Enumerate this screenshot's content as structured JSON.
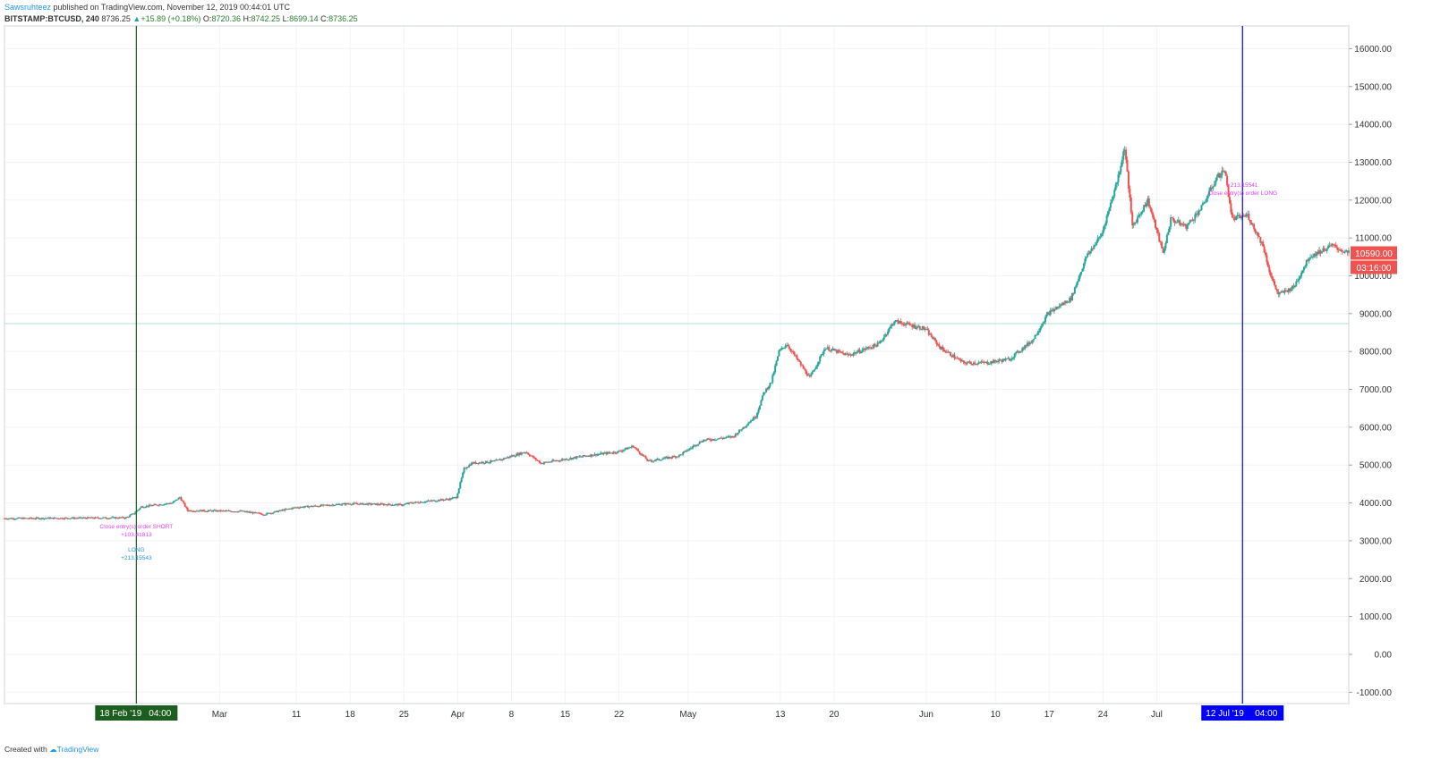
{
  "header": {
    "author": "Sawsruhteez",
    "published": "published on TradingView.com, November 12, 2019 00:44:01 UTC",
    "symbol": "BITSTAMP:BTCUSD, 240",
    "last": "8736.25",
    "change": "+15.89 (+0.18%)",
    "o_label": "O:",
    "o_value": "8720.36",
    "h_label": "H:",
    "h_value": "8742.25",
    "l_label": "L:",
    "l_value": "8699.14",
    "c_label": "C:",
    "c_value": "8736.25"
  },
  "footer": {
    "created_with": "Created with",
    "logo_text": "TradingView"
  },
  "colors": {
    "up": "#26a69a",
    "down": "#ef5350",
    "left_marker": "#1b5e20",
    "right_marker": "#0000ff",
    "annotation_magenta": "#e040fb",
    "annotation_blue": "#2196f3"
  },
  "chart_data": {
    "type": "candlestick",
    "y_axis": {
      "min": -1300,
      "max": 16600,
      "ticks": [
        16000,
        15000,
        14000,
        13000,
        12000,
        11000,
        10000,
        9000,
        8000,
        7000,
        6000,
        5000,
        4000,
        3000,
        2000,
        1000,
        0,
        -1000
      ],
      "tick_labels": [
        "16000.00",
        "15000.00",
        "14000.00",
        "13000.00",
        "12000.00",
        "11000.00",
        "10000.00",
        "9000.00",
        "8000.00",
        "7000.00",
        "6000.00",
        "5000.00",
        "4000.00",
        "3000.00",
        "2000.00",
        "1000.00",
        "0.00",
        "-1000.00"
      ]
    },
    "x_axis": {
      "start": "2019-02-01",
      "end": "2019-07-26",
      "ticks": [
        {
          "date": "2019-03-01",
          "label": "Mar"
        },
        {
          "date": "2019-03-11",
          "label": "11"
        },
        {
          "date": "2019-03-18",
          "label": "18"
        },
        {
          "date": "2019-03-25",
          "label": "25"
        },
        {
          "date": "2019-04-01",
          "label": "Apr"
        },
        {
          "date": "2019-04-08",
          "label": "8"
        },
        {
          "date": "2019-04-15",
          "label": "15"
        },
        {
          "date": "2019-04-22",
          "label": "22"
        },
        {
          "date": "2019-05-01",
          "label": "May"
        },
        {
          "date": "2019-05-13",
          "label": "13"
        },
        {
          "date": "2019-05-20",
          "label": "20"
        },
        {
          "date": "2019-06-01",
          "label": "Jun"
        },
        {
          "date": "2019-06-10",
          "label": "10"
        },
        {
          "date": "2019-06-17",
          "label": "17"
        },
        {
          "date": "2019-06-24",
          "label": "24"
        },
        {
          "date": "2019-07-01",
          "label": "Jul"
        }
      ]
    },
    "price_series": [
      [
        "2019-02-01",
        3590
      ],
      [
        "2019-02-10",
        3600
      ],
      [
        "2019-02-17",
        3610
      ],
      [
        "2019-02-18",
        3720
      ],
      [
        "2019-02-19",
        3900
      ],
      [
        "2019-02-23",
        4000
      ],
      [
        "2019-02-24",
        4150
      ],
      [
        "2019-02-25",
        3800
      ],
      [
        "2019-03-04",
        3780
      ],
      [
        "2019-03-07",
        3700
      ],
      [
        "2019-03-11",
        3880
      ],
      [
        "2019-03-18",
        3980
      ],
      [
        "2019-03-25",
        3950
      ],
      [
        "2019-03-26",
        4000
      ],
      [
        "2019-03-31",
        4100
      ],
      [
        "2019-04-01",
        4150
      ],
      [
        "2019-04-02",
        4900
      ],
      [
        "2019-04-03",
        5050
      ],
      [
        "2019-04-06",
        5100
      ],
      [
        "2019-04-10",
        5350
      ],
      [
        "2019-04-12",
        5050
      ],
      [
        "2019-04-18",
        5250
      ],
      [
        "2019-04-22",
        5350
      ],
      [
        "2019-04-24",
        5500
      ],
      [
        "2019-04-26",
        5100
      ],
      [
        "2019-04-30",
        5250
      ],
      [
        "2019-05-03",
        5650
      ],
      [
        "2019-05-07",
        5750
      ],
      [
        "2019-05-10",
        6300
      ],
      [
        "2019-05-11",
        6900
      ],
      [
        "2019-05-12",
        7200
      ],
      [
        "2019-05-13",
        8000
      ],
      [
        "2019-05-14",
        8200
      ],
      [
        "2019-05-17",
        7300
      ],
      [
        "2019-05-19",
        8100
      ],
      [
        "2019-05-22",
        7900
      ],
      [
        "2019-05-26",
        8200
      ],
      [
        "2019-05-28",
        8800
      ],
      [
        "2019-05-30",
        8700
      ],
      [
        "2019-06-01",
        8600
      ],
      [
        "2019-06-03",
        8100
      ],
      [
        "2019-06-06",
        7700
      ],
      [
        "2019-06-09",
        7700
      ],
      [
        "2019-06-12",
        7800
      ],
      [
        "2019-06-15",
        8300
      ],
      [
        "2019-06-17",
        9000
      ],
      [
        "2019-06-20",
        9400
      ],
      [
        "2019-06-22",
        10500
      ],
      [
        "2019-06-24",
        11100
      ],
      [
        "2019-06-26",
        12500
      ],
      [
        "2019-06-27",
        13400
      ],
      [
        "2019-06-28",
        11300
      ],
      [
        "2019-06-30",
        12000
      ],
      [
        "2019-07-02",
        10600
      ],
      [
        "2019-07-03",
        11500
      ],
      [
        "2019-07-05",
        11300
      ],
      [
        "2019-07-07",
        11800
      ],
      [
        "2019-07-09",
        12600
      ],
      [
        "2019-07-10",
        12800
      ],
      [
        "2019-07-11",
        11500
      ],
      [
        "2019-07-13",
        11600
      ],
      [
        "2019-07-15",
        10800
      ],
      [
        "2019-07-16",
        10000
      ],
      [
        "2019-07-17",
        9500
      ],
      [
        "2019-07-19",
        9700
      ],
      [
        "2019-07-21",
        10500
      ],
      [
        "2019-07-24",
        10800
      ],
      [
        "2019-07-26",
        10600
      ]
    ],
    "horizontal_line": 8736.25,
    "price_label": "10590.00",
    "countdown_label": "03:16:00",
    "price_label_value": 10590,
    "markers": [
      {
        "date": "2019-02-18 04:00",
        "label": "18 Feb '19",
        "time": "04:00",
        "color": "#1b5e20"
      },
      {
        "date": "2019-07-12 04:00",
        "label": "12 Jul '19",
        "time": "04:00",
        "color": "#0000ff"
      }
    ],
    "annotations": [
      {
        "text": "Close entry(s) order SHORT",
        "value": "+103.41813",
        "color": "#e040fb"
      },
      {
        "text": "LONG",
        "value": "+213.15543",
        "color": "#2196f3"
      },
      {
        "text": "Close entry(s) order LONG",
        "value": "+213.15541",
        "color": "#e040fb"
      }
    ]
  }
}
